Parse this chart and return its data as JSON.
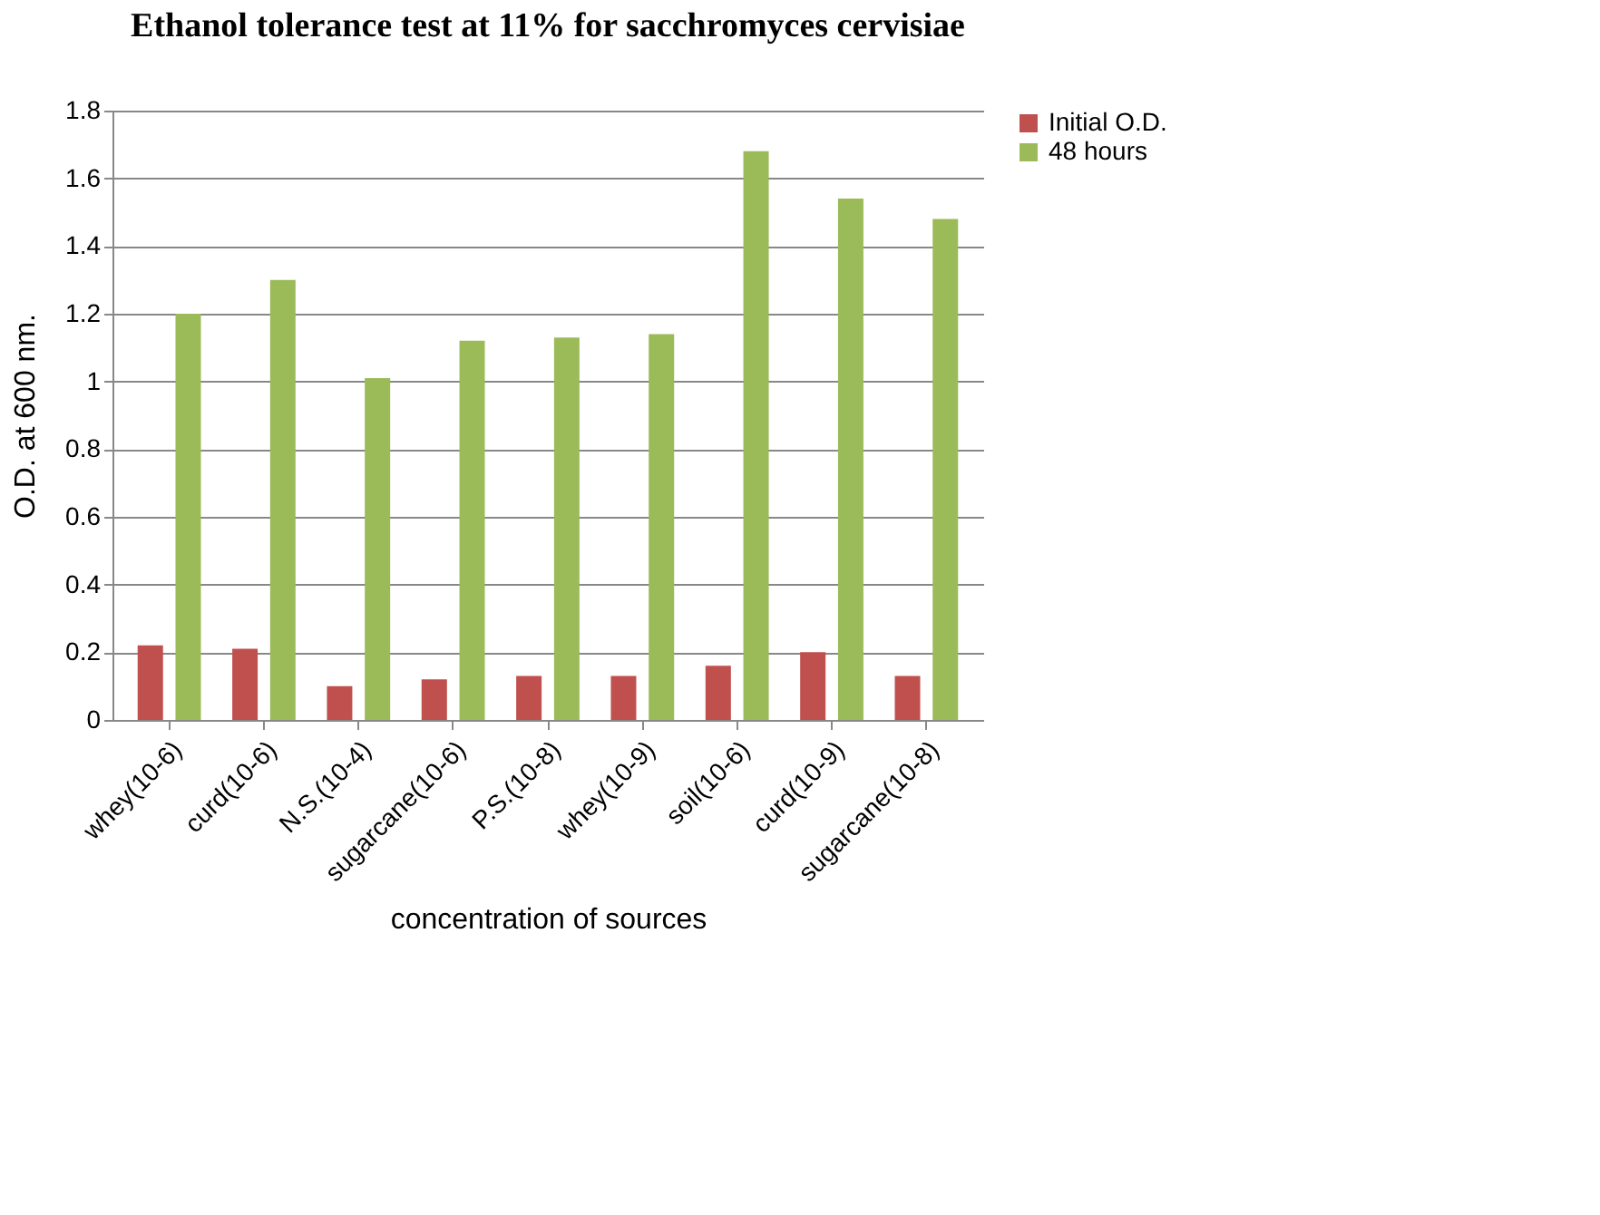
{
  "chart_data": {
    "type": "bar",
    "title": "Ethanol  tolerance test at 11% for sacchromyces cervisiae",
    "xlabel": "concentration of sources",
    "ylabel": "O.D. at 600 nm.",
    "categories": [
      "whey(10-6)",
      "curd(10-6)",
      "N.S.(10-4)",
      "sugarcane(10-6)",
      "P.S.(10-8)",
      "whey(10-9)",
      "soil(10-6)",
      "curd(10-9)",
      "sugarcane(10-8)"
    ],
    "series": [
      {
        "name": "Initial O.D.",
        "color": "#c0504d",
        "values": [
          0.22,
          0.21,
          0.1,
          0.12,
          0.13,
          0.13,
          0.16,
          0.2,
          0.13
        ]
      },
      {
        "name": "48 hours",
        "color": "#9bbb59",
        "values": [
          1.2,
          1.3,
          1.01,
          1.12,
          1.13,
          1.14,
          1.68,
          1.54,
          1.48
        ]
      }
    ],
    "ylim": [
      0,
      1.8
    ],
    "yticks": [
      0,
      0.2,
      0.4,
      0.6,
      0.8,
      1,
      1.2,
      1.4,
      1.6,
      1.8
    ],
    "grid": "y",
    "legend": "right"
  }
}
